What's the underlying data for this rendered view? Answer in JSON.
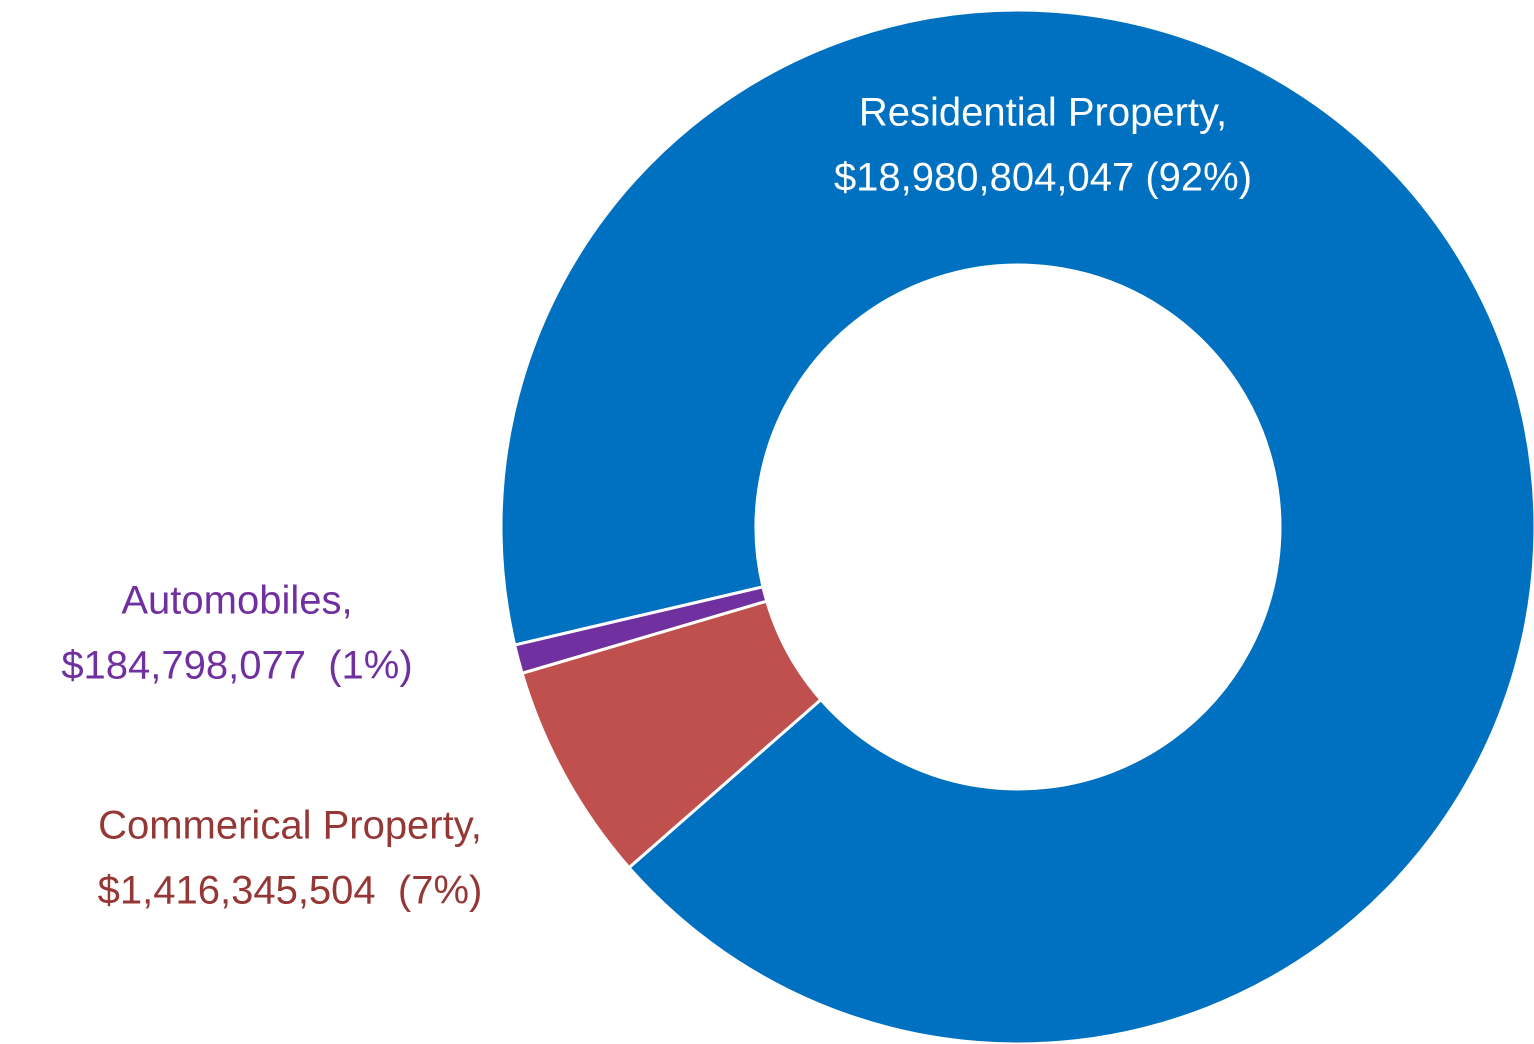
{
  "chart_data": {
    "type": "donut",
    "categories": [
      "Residential Property,",
      "Commerical Property,",
      "Automobiles,"
    ],
    "values": [
      18980804047,
      1416345504,
      184798077
    ],
    "value_labels": [
      "$18,980,804,047 (92%)",
      "$1,416,345,504  (7%)",
      "$184,798,077  (1%)"
    ],
    "colors": [
      "#0070c0",
      "#c0504d",
      "#7030a0"
    ],
    "label_colors": [
      "#ffffff",
      "#953735",
      "#7030a0"
    ]
  }
}
